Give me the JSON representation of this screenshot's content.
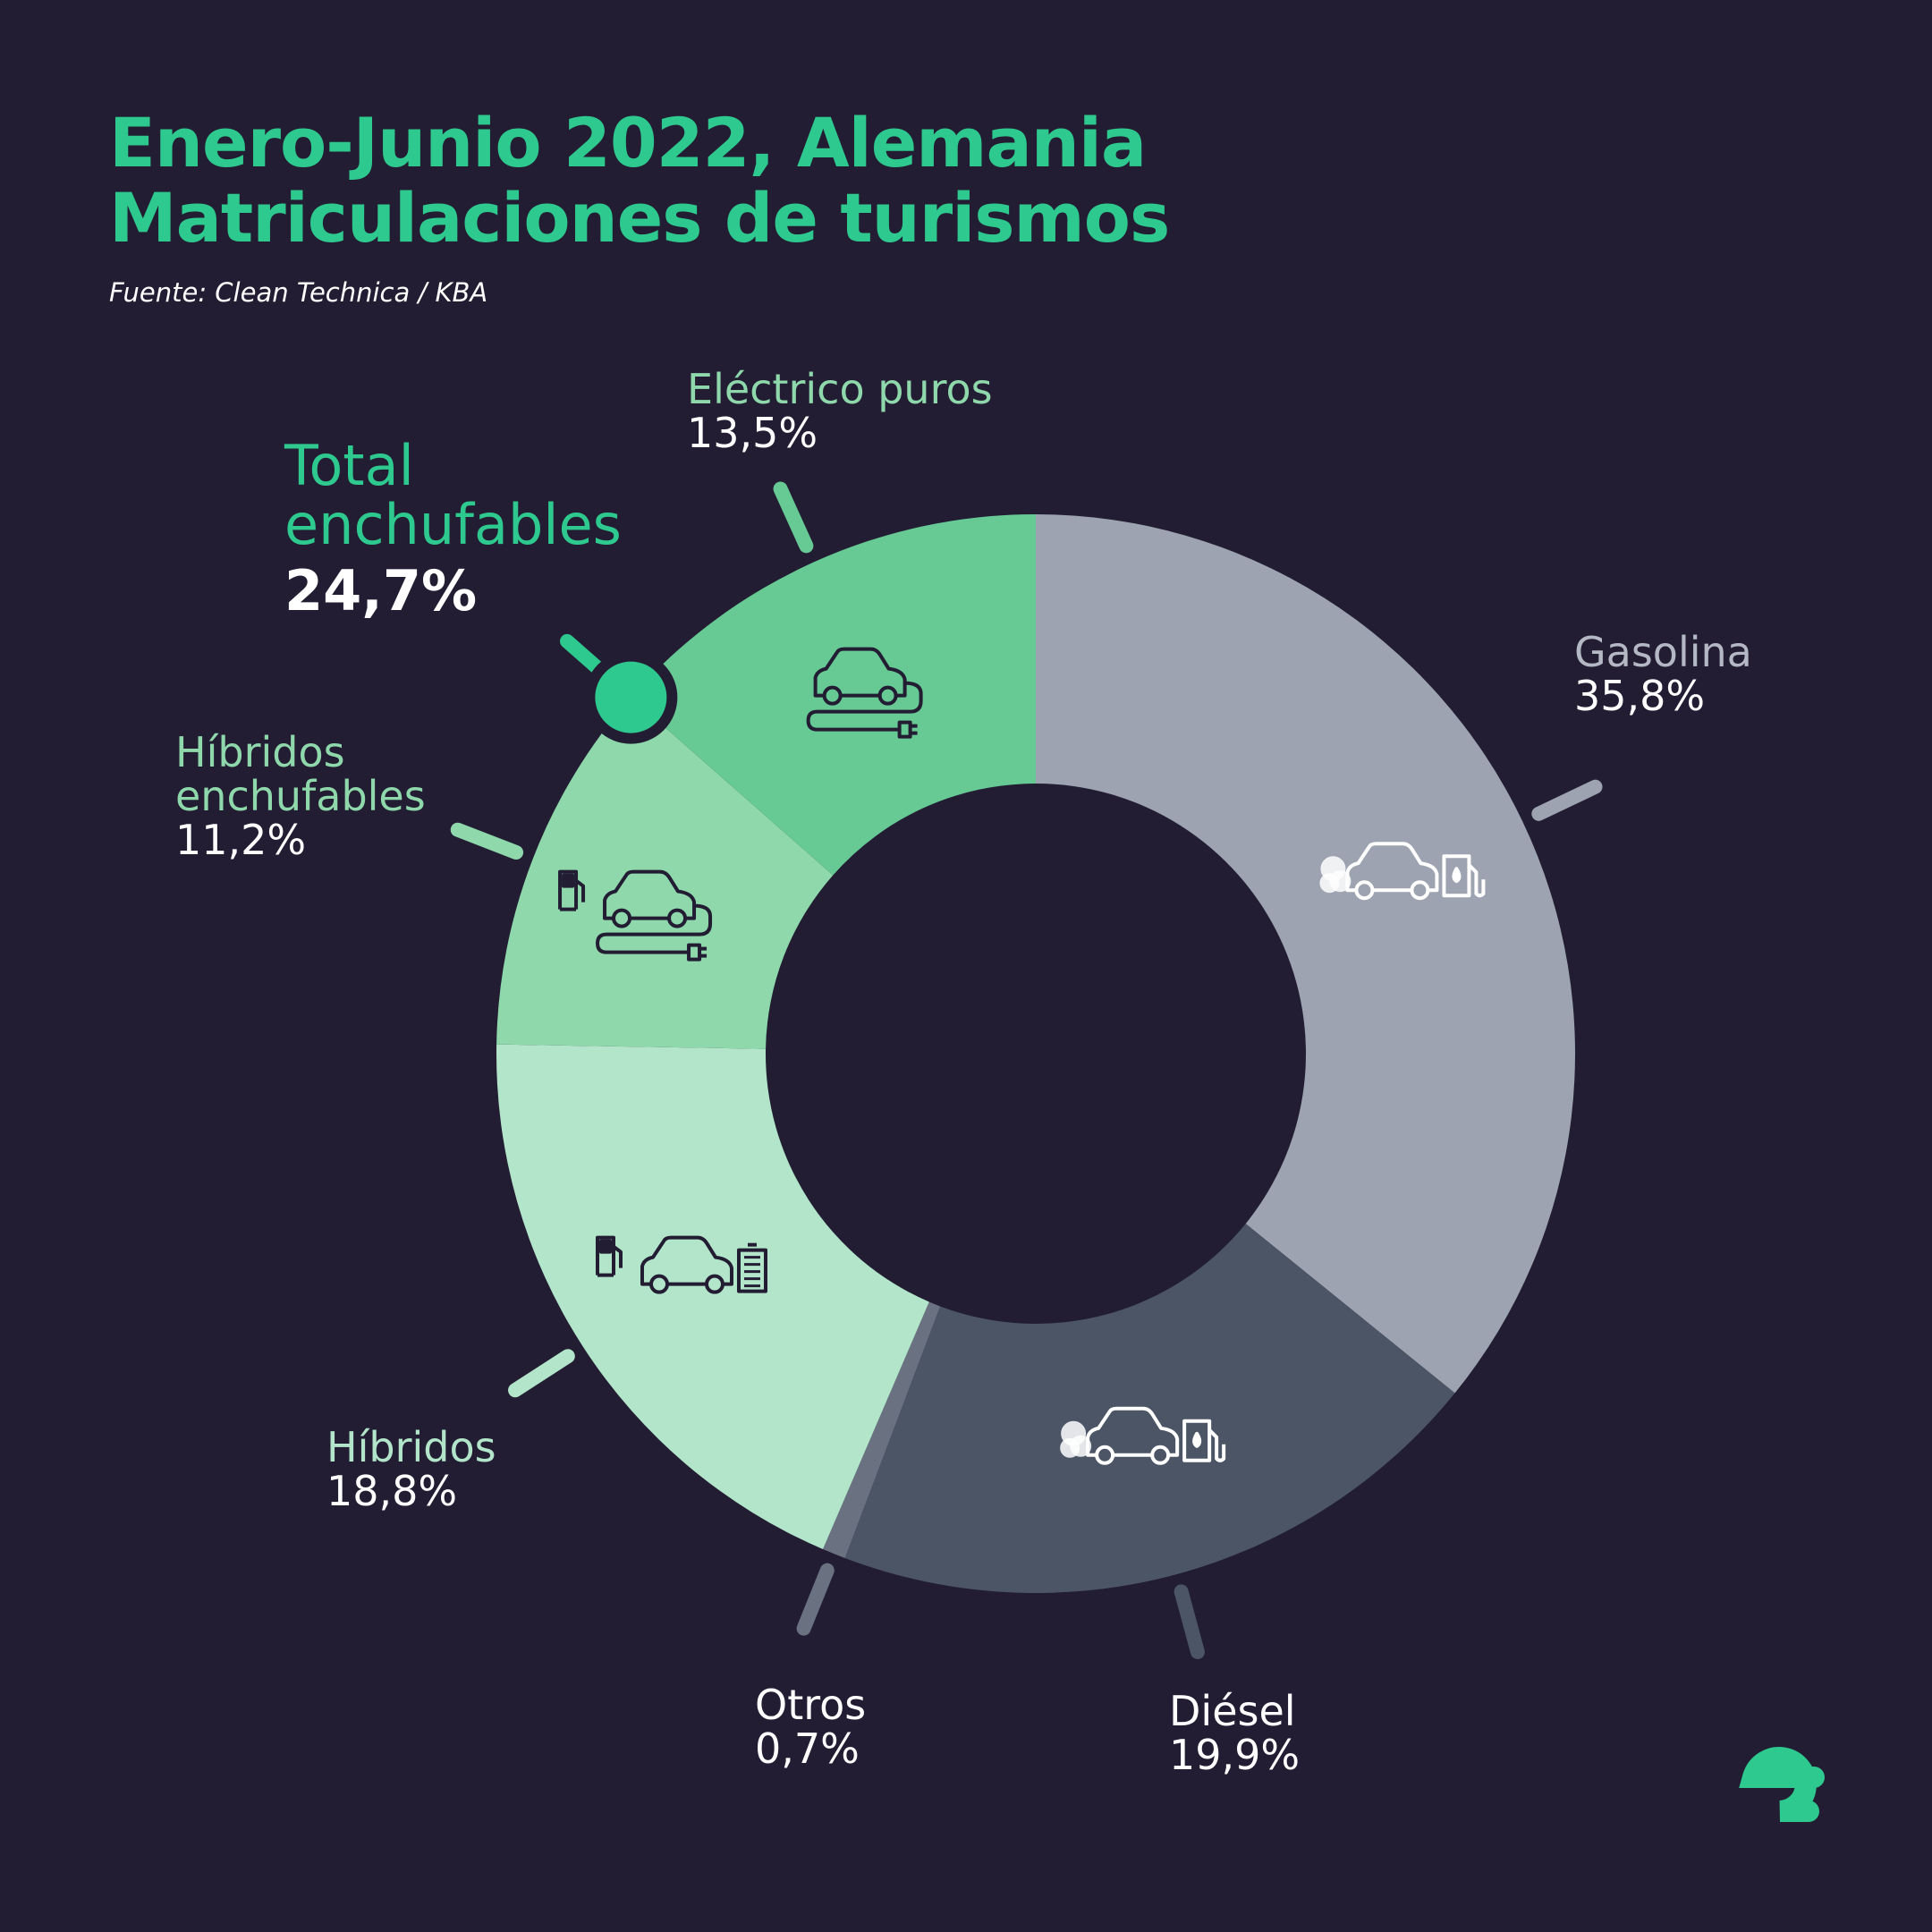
{
  "title": {
    "line1": "Enero-Junio 2022, Alemania",
    "line2": "Matriculaciones de turismos"
  },
  "source": "Fuente: Clean Technica / KBA",
  "total": {
    "label_line1": "Total",
    "label_line2": "enchufables",
    "value": "24,7%"
  },
  "colors": {
    "background": "#221d33",
    "accent": "#2ec98e"
  },
  "chart_data": {
    "type": "donut",
    "start": "12 o'clock, clockwise",
    "series": [
      {
        "name": "Gasolina",
        "value": 35.8,
        "label": "35,8%",
        "color": "#9da3b0",
        "label_color": "#b4b8c4",
        "icon": "gasoline-car-icon"
      },
      {
        "name": "Diésel",
        "value": 19.9,
        "label": "19,9%",
        "color": "#4b5565",
        "label_color": "#ffffff",
        "icon": "diesel-car-icon"
      },
      {
        "name": "Otros",
        "value": 0.7,
        "label": "0,7%",
        "color": "#6a7282",
        "label_color": "#ffffff",
        "icon": ""
      },
      {
        "name": "Híbridos",
        "value": 18.8,
        "label": "18,8%",
        "color": "#b2e5c9",
        "label_color": "#b2e5c9",
        "icon": "hybrid-car-icon"
      },
      {
        "name": "Híbridos enchufables",
        "value": 11.2,
        "label": "11,2%",
        "color": "#8ed8ab",
        "label_color": "#8ed8ab",
        "icon": "plugin-hybrid-car-icon"
      },
      {
        "name": "Eléctrico puros",
        "value": 13.5,
        "label": "13,5%",
        "color": "#67c994",
        "label_color": "#8ed8ab",
        "icon": "electric-car-icon"
      }
    ]
  }
}
